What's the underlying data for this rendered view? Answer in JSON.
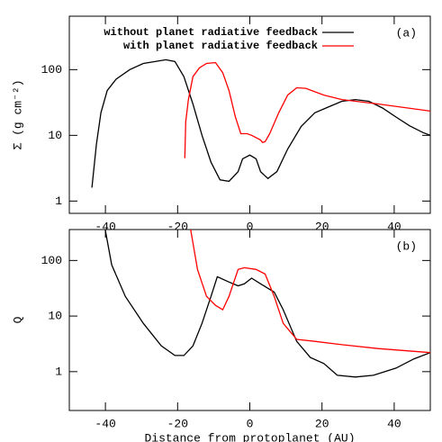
{
  "chart_data": [
    {
      "type": "line",
      "ylabel": "Σ (g cm⁻²)",
      "annotation": "(a)",
      "log_y": true,
      "legend": "upper left",
      "xlim": [
        -50,
        50
      ],
      "xticks": [
        -40,
        -20,
        0,
        20,
        40
      ],
      "ylim": [
        0.65,
        650
      ],
      "yticks": [
        1,
        10,
        100
      ],
      "series": [
        {
          "name": "without planet radiative feedback",
          "color": "#000000",
          "x": [
            -43.75,
            -42.5,
            -41.25,
            -39.5,
            -37,
            -33.25,
            -29.5,
            -23.25,
            -20.75,
            -18.25,
            -15.75,
            -13.25,
            -10.75,
            -8.25,
            -5.75,
            -3.25,
            -2,
            0,
            1.75,
            3,
            5,
            7.5,
            10.5,
            14.25,
            18,
            21.75,
            25.5,
            29.25,
            33,
            36.75,
            40.5,
            44.25,
            48,
            50
          ],
          "values": [
            1.6,
            7.3,
            22,
            48,
            72,
            100,
            124,
            141,
            133,
            78,
            30,
            10,
            3.9,
            2.1,
            2,
            2.8,
            4.4,
            5,
            4.4,
            2.8,
            2.2,
            2.8,
            6.2,
            13.7,
            22,
            27,
            33,
            35,
            33,
            26,
            19,
            14,
            11,
            10
          ]
        },
        {
          "name": "with planet radiative feedback",
          "color": "#ff0000",
          "x": [
            -18,
            -17.75,
            -17,
            -15.75,
            -14,
            -12,
            -9.5,
            -7.5,
            -5.75,
            -4,
            -2.5,
            -0.75,
            0.5,
            3,
            3.5,
            4.25,
            5.5,
            8,
            10.5,
            13,
            15.5,
            20.5,
            25.5,
            35.5,
            50
          ],
          "values": [
            4.5,
            16,
            35,
            78,
            106,
            124,
            128,
            90,
            48,
            19,
            10.6,
            10.6,
            10,
            8.5,
            7.8,
            8,
            10.6,
            22,
            41,
            53,
            52,
            41,
            35,
            30,
            23.4
          ]
        }
      ]
    },
    {
      "type": "line",
      "ylabel": "Q",
      "xlabel": "Distance from protoplanet (AU)",
      "annotation": "(b)",
      "log_y": true,
      "xlim": [
        -50,
        50
      ],
      "xticks": [
        -40,
        -20,
        0,
        20,
        40
      ],
      "ylim": [
        0.2,
        360
      ],
      "yticks": [
        1,
        10,
        100
      ],
      "series": [
        {
          "name": "without planet radiative feedback",
          "color": "#000000",
          "x": [
            -40.25,
            -38.25,
            -34.5,
            -29.5,
            -24.5,
            -20.75,
            -18.25,
            -15.75,
            -13.25,
            -10.75,
            -9,
            -5.75,
            -3.25,
            -1.5,
            0.5,
            3,
            6.75,
            9.25,
            13,
            16.75,
            20.5,
            24.25,
            29.25,
            34.25,
            40.5,
            45.5,
            50
          ],
          "values": [
            420,
            83,
            22.6,
            7.4,
            2.9,
            1.95,
            1.95,
            2.9,
            7.4,
            22.6,
            51,
            41,
            35,
            38,
            48,
            38,
            27,
            13,
            3.5,
            1.8,
            1.4,
            0.86,
            0.8,
            0.86,
            1.16,
            1.7,
            2.2
          ]
        },
        {
          "name": "with planet radiative feedback",
          "color": "#ff0000",
          "x": [
            -16.5,
            -14.5,
            -12,
            -9.5,
            -7.5,
            -5.75,
            -3.25,
            -1.5,
            1.75,
            4.25,
            6.75,
            9.25,
            13,
            18,
            25.5,
            35.5,
            50
          ],
          "values": [
            400,
            69,
            22.6,
            15.6,
            13,
            22.6,
            69,
            74,
            69,
            57,
            22.6,
            7.4,
            3.8,
            3.5,
            3.05,
            2.6,
            2.2
          ]
        }
      ]
    }
  ]
}
